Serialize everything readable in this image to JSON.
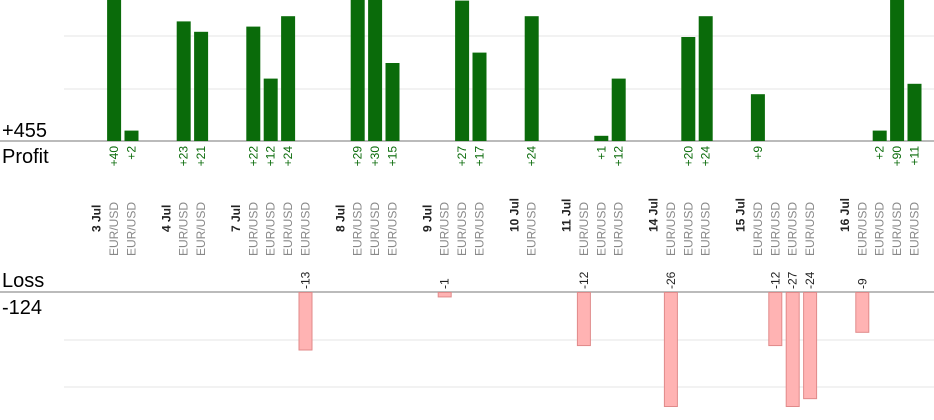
{
  "chart_data": {
    "type": "bar",
    "profit_label": "Profit",
    "loss_label": "Loss",
    "profit_total": "+455",
    "loss_total": "-124",
    "colors": {
      "profit": "#0a6b0a",
      "profit_text": "#0a6b0a",
      "loss_fill": "#ffb3b3",
      "loss_stroke": "#e08a8a",
      "loss_text": "#222222",
      "date_text": "#222222",
      "pair_text": "#888888",
      "grid": "#e6e6e6",
      "axis": "#777777"
    },
    "profit_scale_max": 27,
    "loss_scale_max": 26,
    "groups": [
      {
        "date": "3 Jul",
        "trades": [
          {
            "pair": "EUR/USD",
            "value": 40,
            "label": "+40"
          },
          {
            "pair": "EUR/USD",
            "value": 2,
            "label": "+2"
          }
        ]
      },
      {
        "date": "4 Jul",
        "trades": [
          {
            "pair": "EUR/USD",
            "value": 23,
            "label": "+23"
          },
          {
            "pair": "EUR/USD",
            "value": 21,
            "label": "+21"
          }
        ]
      },
      {
        "date": "7 Jul",
        "trades": [
          {
            "pair": "EUR/USD",
            "value": 22,
            "label": "+22"
          },
          {
            "pair": "EUR/USD",
            "value": 12,
            "label": "+12"
          },
          {
            "pair": "EUR/USD",
            "value": 24,
            "label": "+24"
          },
          {
            "pair": "EUR/USD",
            "value": -13,
            "label": "-13"
          }
        ]
      },
      {
        "date": "8 Jul",
        "trades": [
          {
            "pair": "EUR/USD",
            "value": 29,
            "label": "+29"
          },
          {
            "pair": "EUR/USD",
            "value": 30,
            "label": "+30"
          },
          {
            "pair": "EUR/USD",
            "value": 15,
            "label": "+15"
          }
        ]
      },
      {
        "date": "9 Jul",
        "trades": [
          {
            "pair": "EUR/USD",
            "value": -1,
            "label": "-1"
          },
          {
            "pair": "EUR/USD",
            "value": 27,
            "label": "+27"
          },
          {
            "pair": "EUR/USD",
            "value": 17,
            "label": "+17"
          }
        ]
      },
      {
        "date": "10 Jul",
        "trades": [
          {
            "pair": "EUR/USD",
            "value": 24,
            "label": "+24"
          }
        ]
      },
      {
        "date": "11 Jul",
        "trades": [
          {
            "pair": "EUR/USD",
            "value": -12,
            "label": "-12"
          },
          {
            "pair": "EUR/USD",
            "value": 1,
            "label": "+1"
          },
          {
            "pair": "EUR/USD",
            "value": 12,
            "label": "+12"
          }
        ]
      },
      {
        "date": "14 Jul",
        "trades": [
          {
            "pair": "EUR/USD",
            "value": -26,
            "label": "-26"
          },
          {
            "pair": "EUR/USD",
            "value": 20,
            "label": "+20"
          },
          {
            "pair": "EUR/USD",
            "value": 24,
            "label": "+24"
          }
        ]
      },
      {
        "date": "15 Jul",
        "trades": [
          {
            "pair": "EUR/USD",
            "value": 9,
            "label": "+9"
          },
          {
            "pair": "EUR/USD",
            "value": -12,
            "label": "-12"
          },
          {
            "pair": "EUR/USD",
            "value": -27,
            "label": "-27"
          },
          {
            "pair": "EUR/USD",
            "value": -24,
            "label": "-24"
          }
        ]
      },
      {
        "date": "16 Jul",
        "trades": [
          {
            "pair": "EUR/USD",
            "value": -9,
            "label": "-9"
          },
          {
            "pair": "EUR/USD",
            "value": 2,
            "label": "+2"
          },
          {
            "pair": "EUR/USD",
            "value": 90,
            "label": "+90"
          },
          {
            "pair": "EUR/USD",
            "value": 11,
            "label": "+11"
          }
        ]
      }
    ]
  }
}
